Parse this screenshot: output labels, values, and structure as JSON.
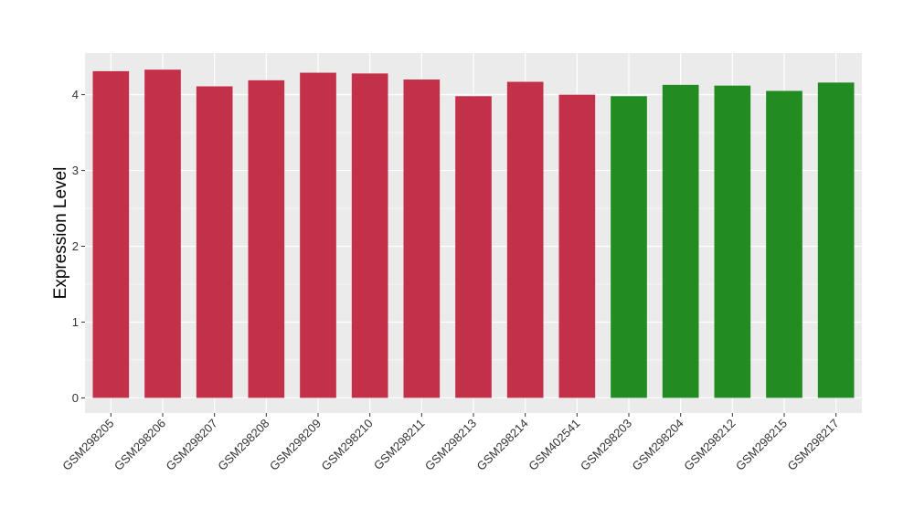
{
  "chart_data": {
    "type": "bar",
    "title": "",
    "xlabel": "",
    "ylabel": "Expression Level",
    "ylim": [
      -0.2,
      4.55
    ],
    "yticks": [
      0,
      1,
      2,
      3,
      4
    ],
    "grid": true,
    "background": "#EBEBEB",
    "categories": [
      "GSM298205",
      "GSM298206",
      "GSM298207",
      "GSM298208",
      "GSM298209",
      "GSM298210",
      "GSM298211",
      "GSM298213",
      "GSM298214",
      "GSM402541",
      "GSM298203",
      "GSM298204",
      "GSM298212",
      "GSM298215",
      "GSM298217"
    ],
    "values": [
      4.31,
      4.33,
      4.11,
      4.19,
      4.29,
      4.28,
      4.2,
      3.98,
      4.17,
      4.0,
      3.98,
      4.13,
      4.12,
      4.05,
      4.16
    ],
    "bar_colors": [
      "#C3304A",
      "#C3304A",
      "#C3304A",
      "#C3304A",
      "#C3304A",
      "#C3304A",
      "#C3304A",
      "#C3304A",
      "#C3304A",
      "#C3304A",
      "#228B22",
      "#228B22",
      "#228B22",
      "#228B22",
      "#228B22"
    ]
  }
}
